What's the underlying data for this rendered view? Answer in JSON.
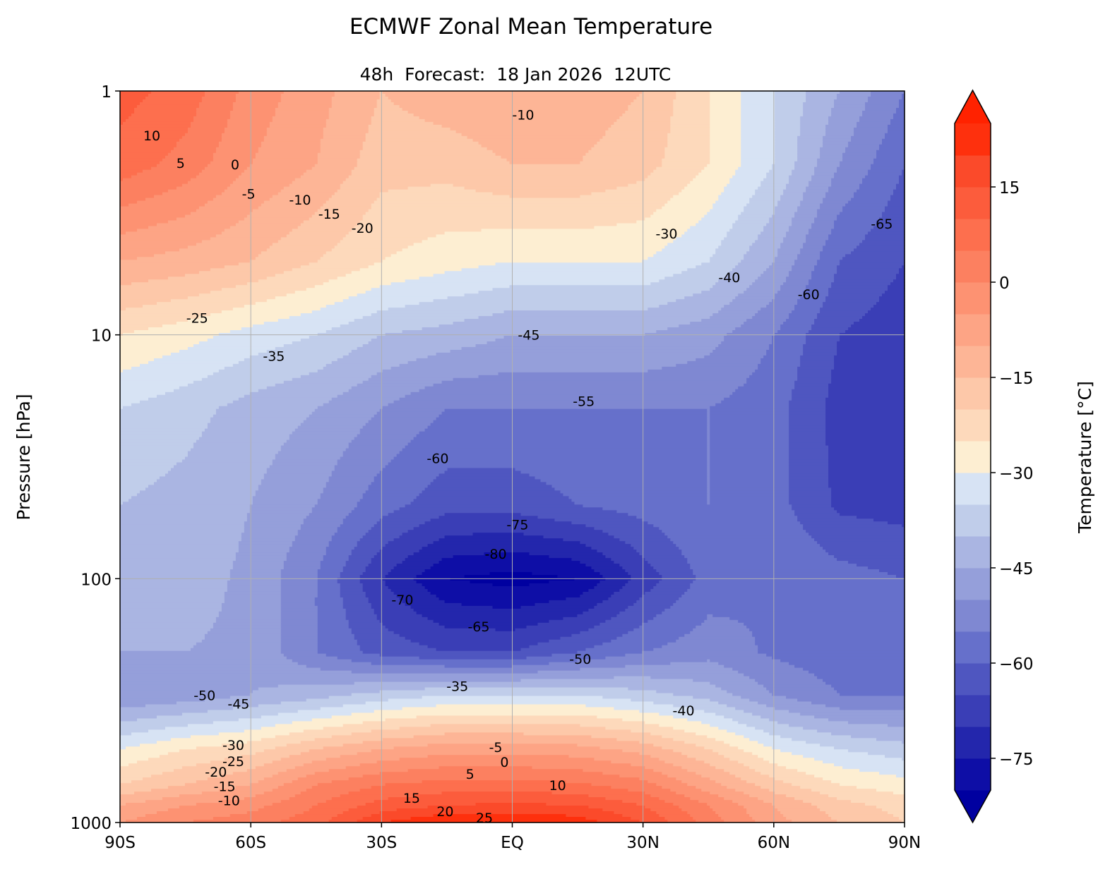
{
  "chart_data": {
    "type": "heatmap",
    "subtype": "filled-contour",
    "title": "ECMWF Zonal Mean Temperature",
    "subtitle": "48h  Forecast:  18 Jan 2026  12UTC",
    "xlabel": "",
    "ylabel": "Pressure [hPa]",
    "colorbar_label": "Temperature [°C]",
    "x_ticks": [
      {
        "value": -90,
        "label": "90S"
      },
      {
        "value": -60,
        "label": "60S"
      },
      {
        "value": -30,
        "label": "30S"
      },
      {
        "value": 0,
        "label": "EQ"
      },
      {
        "value": 30,
        "label": "30N"
      },
      {
        "value": 60,
        "label": "60N"
      },
      {
        "value": 90,
        "label": "90N"
      }
    ],
    "y_ticks": [
      {
        "value": 1,
        "label": "1"
      },
      {
        "value": 10,
        "label": "10"
      },
      {
        "value": 100,
        "label": "100"
      },
      {
        "value": 1000,
        "label": "1000"
      }
    ],
    "y_scale": "log",
    "y_inverted": true,
    "xlim": [
      -90,
      90
    ],
    "ylim": [
      1,
      1000
    ],
    "grid": true,
    "colorbar_ticks": [
      {
        "value": 15,
        "label": "15"
      },
      {
        "value": 0,
        "label": "0"
      },
      {
        "value": -15,
        "label": "−15"
      },
      {
        "value": -30,
        "label": "−30"
      },
      {
        "value": -45,
        "label": "−45"
      },
      {
        "value": -60,
        "label": "−60"
      },
      {
        "value": -75,
        "label": "−75"
      }
    ],
    "levels": [
      -80,
      25,
      5
    ],
    "colors": [
      "#0e0ea6",
      "#2326ac",
      "#3a3eb6",
      "#4f56c0",
      "#6670cb",
      "#7f88d2",
      "#959fda",
      "#aab5e2",
      "#c0cdea",
      "#d7e3f4",
      "#fdeed2",
      "#fdd9bb",
      "#fdc8a9",
      "#fdb596",
      "#fda485",
      "#fd9272",
      "#fc8060",
      "#fd6f4e",
      "#fc5c3c",
      "#fb4a2a",
      "#fe300d"
    ],
    "extend_low_color": "#0000a0",
    "extend_high_color": "#ff2200",
    "lats": [
      -90,
      -75,
      -60,
      -45,
      -30,
      -15,
      0,
      15,
      30,
      45,
      60,
      75,
      90
    ],
    "pressures": [
      1,
      2,
      5,
      10,
      20,
      50,
      100,
      200,
      300,
      500,
      700,
      850,
      1000
    ],
    "values": [
      [
        12,
        8,
        -2,
        -8,
        -15,
        -12,
        -10,
        -12,
        -15,
        -25,
        -35,
        -45,
        -55
      ],
      [
        8,
        3,
        -5,
        -10,
        -18,
        -18,
        -15,
        -15,
        -18,
        -25,
        -35,
        -50,
        -60
      ],
      [
        -10,
        -12,
        -15,
        -20,
        -25,
        -28,
        -30,
        -30,
        -30,
        -35,
        -45,
        -60,
        -65
      ],
      [
        -25,
        -28,
        -32,
        -35,
        -40,
        -42,
        -45,
        -45,
        -45,
        -48,
        -55,
        -65,
        -68
      ],
      [
        -35,
        -38,
        -42,
        -45,
        -50,
        -55,
        -55,
        -55,
        -55,
        -55,
        -58,
        -67,
        -68
      ],
      [
        -40,
        -42,
        -45,
        -50,
        -58,
        -63,
        -63,
        -60,
        -58,
        -55,
        -58,
        -66,
        -67
      ],
      [
        -42,
        -43,
        -46,
        -55,
        -70,
        -80,
        -82,
        -80,
        -68,
        -58,
        -55,
        -58,
        -60
      ],
      [
        -45,
        -45,
        -46,
        -55,
        -62,
        -65,
        -65,
        -60,
        -55,
        -52,
        -56,
        -58,
        -58
      ],
      [
        -50,
        -48,
        -45,
        -42,
        -38,
        -35,
        -35,
        -35,
        -38,
        -42,
        -50,
        -55,
        -55
      ],
      [
        -30,
        -25,
        -22,
        -15,
        -10,
        -7,
        -7,
        -8,
        -12,
        -20,
        -30,
        -35,
        -38
      ],
      [
        -20,
        -15,
        -10,
        0,
        5,
        7,
        7,
        6,
        2,
        -8,
        -18,
        -25,
        -28
      ],
      [
        -10,
        -5,
        -2,
        5,
        12,
        15,
        16,
        15,
        10,
        0,
        -10,
        -18,
        -22
      ],
      [
        -5,
        0,
        3,
        8,
        20,
        25,
        25,
        23,
        15,
        3,
        -8,
        -15,
        -20
      ]
    ],
    "contour_labels": [
      {
        "lat": -82.7,
        "p": 1.52,
        "text": "10"
      },
      {
        "lat": -76.1,
        "p": 1.97,
        "text": "5"
      },
      {
        "lat": -63.6,
        "p": 2.0,
        "text": "0"
      },
      {
        "lat": -60.5,
        "p": 2.64,
        "text": "-5"
      },
      {
        "lat": -48.7,
        "p": 2.79,
        "text": "-10"
      },
      {
        "lat": -42,
        "p": 3.19,
        "text": "-15"
      },
      {
        "lat": -34.4,
        "p": 3.64,
        "text": "-20"
      },
      {
        "lat": 2.5,
        "p": 1.25,
        "text": "-10"
      },
      {
        "lat": 35.4,
        "p": 3.84,
        "text": "-30"
      },
      {
        "lat": -72.3,
        "p": 8.5,
        "text": "-25"
      },
      {
        "lat": -54.7,
        "p": 12.2,
        "text": "-35"
      },
      {
        "lat": 49.8,
        "p": 5.8,
        "text": "-40"
      },
      {
        "lat": 68,
        "p": 6.8,
        "text": "-60"
      },
      {
        "lat": 84.8,
        "p": 3.5,
        "text": "-65"
      },
      {
        "lat": 3.8,
        "p": 10,
        "text": "-45"
      },
      {
        "lat": 16.4,
        "p": 18.7,
        "text": "-55"
      },
      {
        "lat": -17.1,
        "p": 32,
        "text": "-60"
      },
      {
        "lat": 1.2,
        "p": 60,
        "text": "-75"
      },
      {
        "lat": -3.8,
        "p": 79,
        "text": "-80"
      },
      {
        "lat": -25.2,
        "p": 122,
        "text": "-70"
      },
      {
        "lat": -7.7,
        "p": 157,
        "text": "-65"
      },
      {
        "lat": 15.6,
        "p": 213,
        "text": "-50"
      },
      {
        "lat": -12.6,
        "p": 276,
        "text": "-35"
      },
      {
        "lat": -70.6,
        "p": 300,
        "text": "-50"
      },
      {
        "lat": -62.8,
        "p": 326,
        "text": "-45"
      },
      {
        "lat": 39.3,
        "p": 347,
        "text": "-40"
      },
      {
        "lat": -3.8,
        "p": 490,
        "text": "-5"
      },
      {
        "lat": -1.8,
        "p": 564,
        "text": "0"
      },
      {
        "lat": -9.7,
        "p": 631,
        "text": "5"
      },
      {
        "lat": 10.4,
        "p": 702,
        "text": "10"
      },
      {
        "lat": -23.1,
        "p": 791,
        "text": "15"
      },
      {
        "lat": -15.4,
        "p": 898,
        "text": "20"
      },
      {
        "lat": -6.4,
        "p": 953,
        "text": "25"
      },
      {
        "lat": -64,
        "p": 480,
        "text": "-30"
      },
      {
        "lat": -64,
        "p": 560,
        "text": "-25"
      },
      {
        "lat": -68,
        "p": 620,
        "text": "-20"
      },
      {
        "lat": -66,
        "p": 710,
        "text": "-15"
      },
      {
        "lat": -65,
        "p": 810,
        "text": "-10"
      }
    ]
  }
}
